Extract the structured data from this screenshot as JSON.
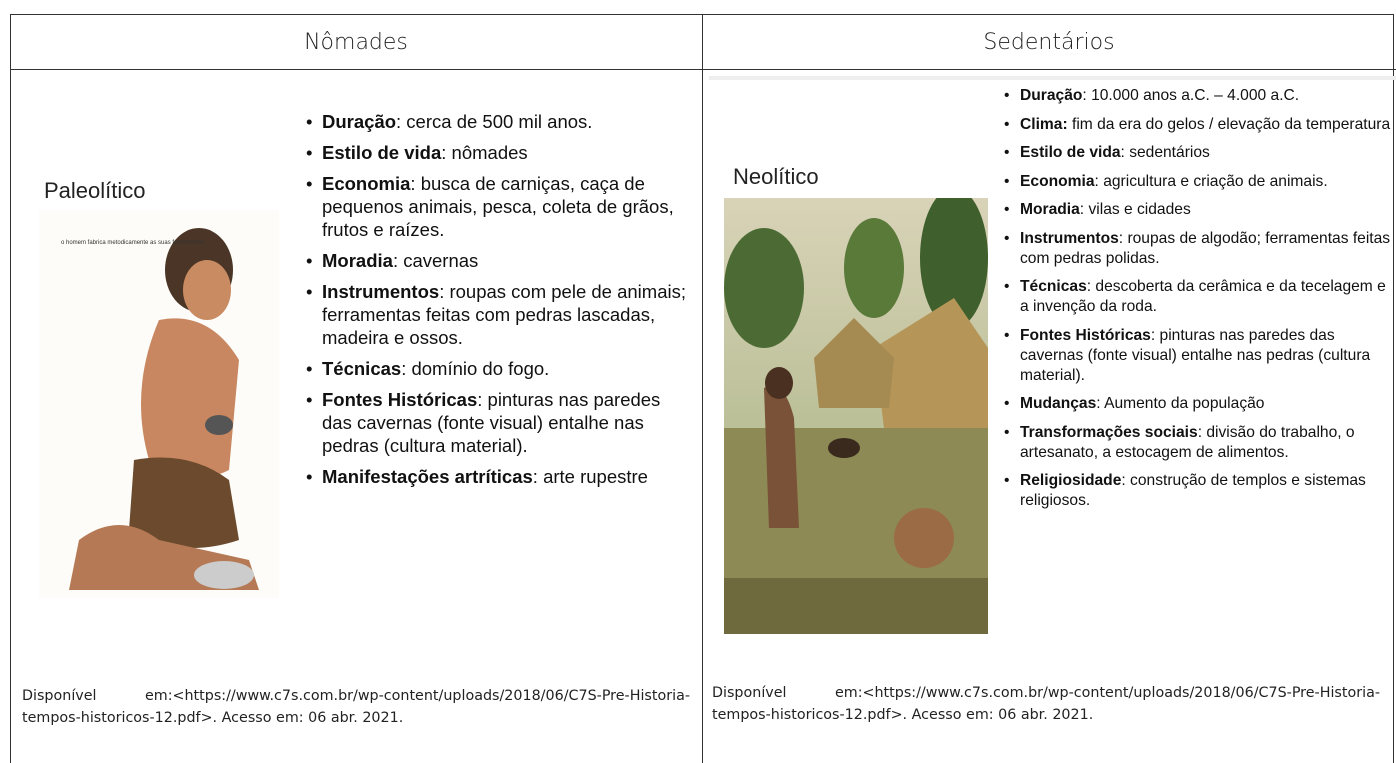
{
  "table": {
    "headers": [
      "Nômades",
      "Sedentários"
    ],
    "columns": [
      {
        "period": "Paleolítico",
        "image_caption": "o homem fabrica metodicamente as suas ferramentas",
        "items": [
          {
            "term": "Duração",
            "text": ": cerca de 500 mil anos."
          },
          {
            "term": "Estilo de vida",
            "text": ": nômades"
          },
          {
            "term": "Economia",
            "text": ": busca de carniças, caça de pequenos animais, pesca, coleta de grãos, frutos e raízes."
          },
          {
            "term": "Moradia",
            "text": ": cavernas"
          },
          {
            "term": "Instrumentos",
            "text": ": roupas com pele de animais; ferramentas feitas com pedras lascadas, madeira e ossos."
          },
          {
            "term": "Técnicas",
            "text": ": domínio do fogo."
          },
          {
            "term": "Fontes Históricas",
            "text": ": pinturas nas paredes das cavernas (fonte visual) entalhe nas pedras (cultura material)."
          },
          {
            "term": "Manifestações artríticas",
            "text": ": arte rupestre"
          }
        ],
        "source": "Disponível em:<https://www.c7s.com.br/wp-content/uploads/2018/06/C7S-Pre-Historia-tempos-historicos-12.pdf>. Acesso em: 06 abr. 2021."
      },
      {
        "period": "Neolítico",
        "items": [
          {
            "term": "Duração",
            "text": ": 10.000 anos a.C. – 4.000 a.C."
          },
          {
            "term": "Clima:",
            "text": " fim da era do gelos / elevação da temperatura"
          },
          {
            "term": "Estilo de vida",
            "text": ": sedentários"
          },
          {
            "term": "Economia",
            "text": ": agricultura e criação de animais."
          },
          {
            "term": "Moradia",
            "text": ": vilas e cidades"
          },
          {
            "term": "Instrumentos",
            "text": ": roupas de algodão; ferramentas feitas com pedras polidas."
          },
          {
            "term": "Técnicas",
            "text": ": descoberta da cerâmica e da tecelagem e a invenção da roda."
          },
          {
            "term": "Fontes Históricas",
            "text": ": pinturas nas paredes das cavernas (fonte visual) entalhe nas pedras (cultura material)."
          },
          {
            "term": "Mudanças",
            "text": ": Aumento da população"
          },
          {
            "term": "Transformações sociais",
            "text": ": divisão do trabalho, o artesanato, a estocagem de alimentos."
          },
          {
            "term": "Religiosidade",
            "text": ": construção de templos e sistemas religiosos."
          }
        ],
        "source": "Disponível em:<https://www.c7s.com.br/wp-content/uploads/2018/06/C7S-Pre-Historia-tempos-historicos-12.pdf>. Acesso em: 06 abr. 2021."
      }
    ]
  }
}
